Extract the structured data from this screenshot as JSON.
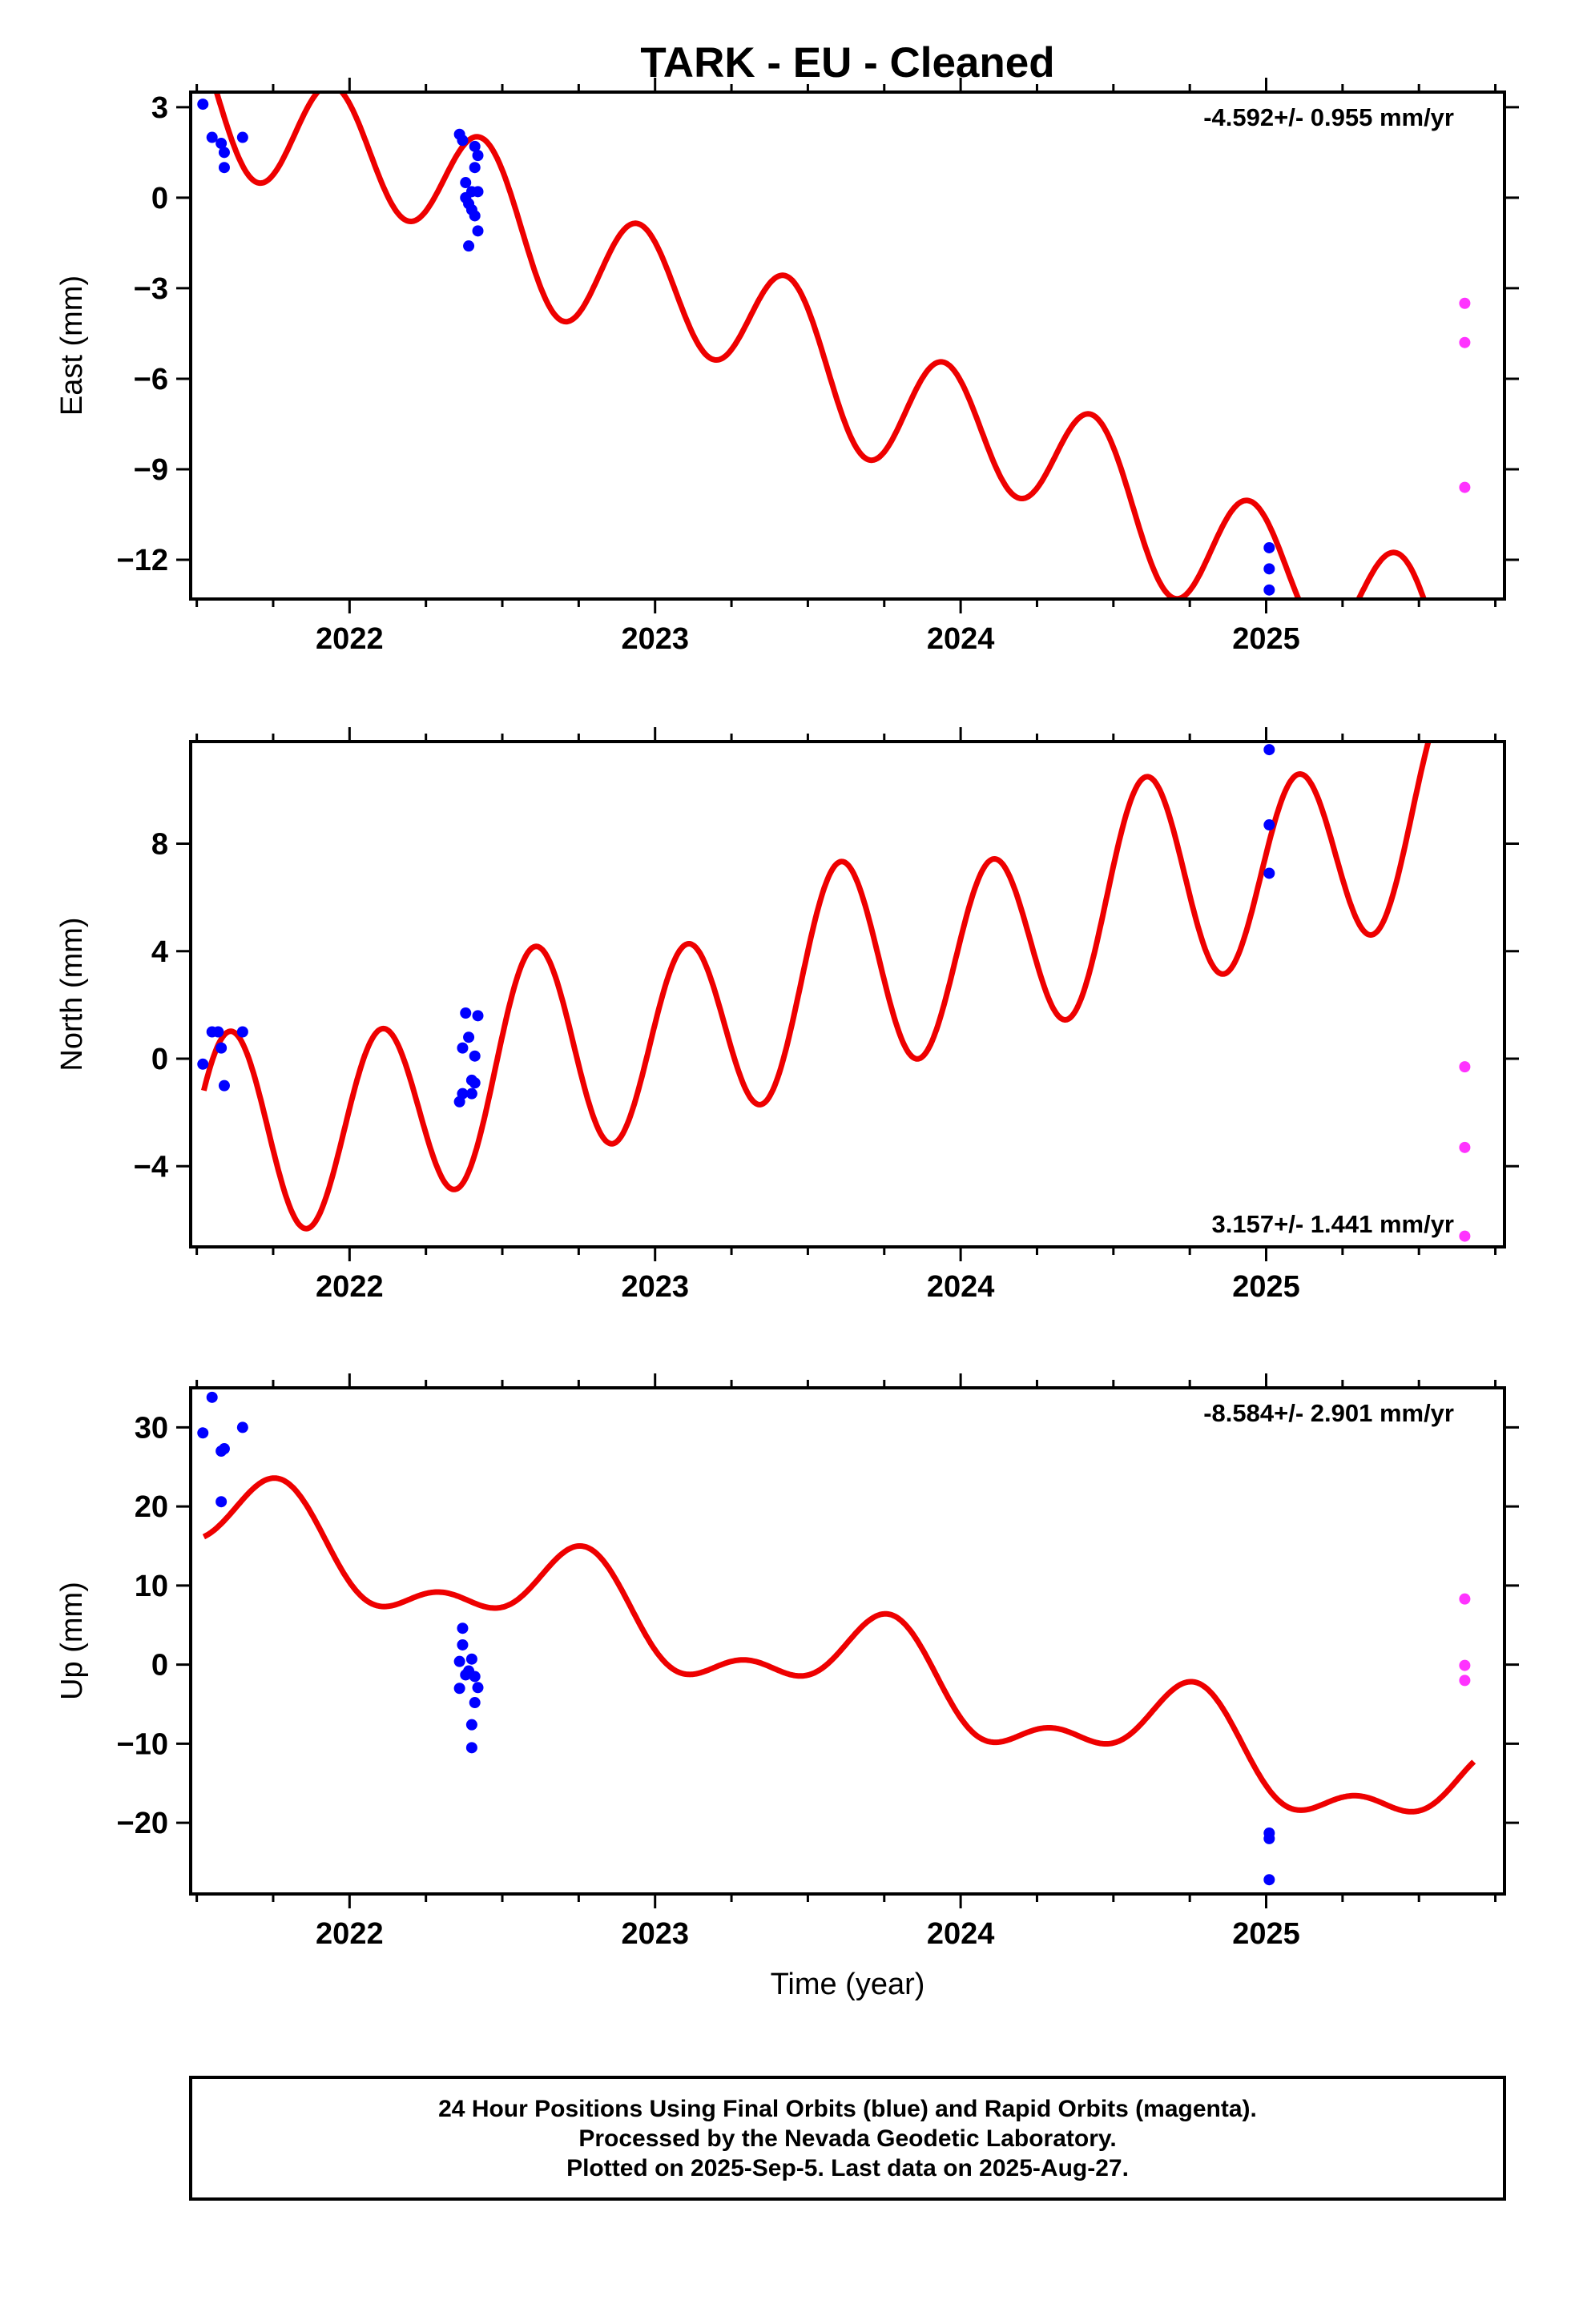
{
  "title": "TARK  - EU - Cleaned",
  "colors": {
    "final": "#0000ff",
    "rapid": "#ff33ff",
    "model": "#ee0000",
    "frame": "#000000"
  },
  "footer": {
    "line1": "24 Hour Positions Using Final Orbits (blue) and Rapid Orbits (magenta).",
    "line2": "Processed by the Nevada Geodetic Laboratory.",
    "line3": "Plotted on 2025-Sep-5. Last data on 2025-Aug-27."
  },
  "chart_data": [
    {
      "type": "scatter",
      "ylabel": "East (mm)",
      "xlabel": "",
      "xlim": [
        2021.48,
        2025.78
      ],
      "ylim": [
        -13.3,
        3.5
      ],
      "x_ticks": [
        2022,
        2023,
        2024,
        2025
      ],
      "y_ticks": [
        3,
        0,
        -3,
        -6,
        -9,
        -12
      ],
      "rate_label": "-4.592+/- 0.955 mm/yr",
      "model": {
        "x0": 2022.0,
        "offset": 1.66,
        "slope": -4.592,
        "annual_amp": 0.55,
        "annual_phase": 6.2,
        "semiannual_amp": 2.05,
        "semiannual_phase": 2.32
      },
      "final_points": [
        [
          2021.52,
          3.1
        ],
        [
          2021.55,
          2.0
        ],
        [
          2021.58,
          1.8
        ],
        [
          2021.59,
          1.5
        ],
        [
          2021.59,
          1.0
        ],
        [
          2021.65,
          2.0
        ],
        [
          2022.36,
          2.1
        ],
        [
          2022.37,
          1.9
        ],
        [
          2022.38,
          0.5
        ],
        [
          2022.38,
          0.0
        ],
        [
          2022.39,
          -0.2
        ],
        [
          2022.39,
          -1.6
        ],
        [
          2022.4,
          0.2
        ],
        [
          2022.4,
          -0.4
        ],
        [
          2022.41,
          -0.6
        ],
        [
          2022.41,
          1.0
        ],
        [
          2022.41,
          1.7
        ],
        [
          2022.42,
          1.4
        ],
        [
          2022.42,
          0.2
        ],
        [
          2022.42,
          -1.1
        ],
        [
          2025.01,
          -11.6
        ],
        [
          2025.01,
          -12.3
        ],
        [
          2025.01,
          -13.0
        ]
      ],
      "rapid_points": [
        [
          2025.65,
          -3.5
        ],
        [
          2025.65,
          -4.8
        ],
        [
          2025.65,
          -9.6
        ]
      ]
    },
    {
      "type": "scatter",
      "ylabel": "North (mm)",
      "xlabel": "",
      "xlim": [
        2021.48,
        2025.78
      ],
      "ylim": [
        -7.0,
        11.8
      ],
      "x_ticks": [
        2022,
        2023,
        2024,
        2025
      ],
      "y_ticks": [
        8,
        4,
        0,
        -4
      ],
      "rate_label": "3.157+/- 1.441 mm/yr",
      "model": {
        "x0": 2022.0,
        "offset": -2.19,
        "slope": 3.157,
        "annual_amp": 0.74,
        "annual_phase": 4.0,
        "semiannual_amp": 3.71,
        "semiannual_phase": 0.245
      },
      "final_points": [
        [
          2021.52,
          -0.2
        ],
        [
          2021.55,
          1.0
        ],
        [
          2021.57,
          1.0
        ],
        [
          2021.58,
          0.4
        ],
        [
          2021.59,
          -1.0
        ],
        [
          2021.65,
          1.0
        ],
        [
          2022.36,
          -1.6
        ],
        [
          2022.37,
          -1.3
        ],
        [
          2022.37,
          0.4
        ],
        [
          2022.38,
          1.7
        ],
        [
          2022.39,
          0.8
        ],
        [
          2022.4,
          -0.8
        ],
        [
          2022.4,
          -1.3
        ],
        [
          2022.41,
          -0.9
        ],
        [
          2022.41,
          0.1
        ],
        [
          2022.42,
          1.6
        ],
        [
          2025.01,
          11.5
        ],
        [
          2025.01,
          8.7
        ],
        [
          2025.01,
          6.9
        ]
      ],
      "rapid_points": [
        [
          2025.65,
          -0.3
        ],
        [
          2025.65,
          -3.3
        ],
        [
          2025.65,
          -6.6
        ]
      ]
    },
    {
      "type": "scatter",
      "ylabel": "Up (mm)",
      "xlabel": "Time (year)",
      "xlim": [
        2021.48,
        2025.78
      ],
      "ylim": [
        -29,
        35
      ],
      "x_ticks": [
        2022,
        2023,
        2024,
        2025
      ],
      "y_ticks": [
        30,
        20,
        10,
        0,
        -10,
        -20
      ],
      "rate_label": "-8.584+/- 2.901 mm/yr",
      "model": {
        "x0": 2022.0,
        "offset": 13.64,
        "slope": -8.584,
        "annual_amp": 5.18,
        "annual_phase": 3.25,
        "semiannual_amp": 2.89,
        "semiannual_phase": 4.3
      },
      "final_points": [
        [
          2021.52,
          29.3
        ],
        [
          2021.55,
          33.8
        ],
        [
          2021.58,
          27.0
        ],
        [
          2021.59,
          27.3
        ],
        [
          2021.65,
          30.0
        ],
        [
          2021.58,
          20.6
        ],
        [
          2022.36,
          0.4
        ],
        [
          2022.37,
          2.5
        ],
        [
          2022.37,
          4.6
        ],
        [
          2022.38,
          -1.3
        ],
        [
          2022.39,
          -0.8
        ],
        [
          2022.4,
          0.7
        ],
        [
          2022.4,
          -10.5
        ],
        [
          2022.4,
          -7.6
        ],
        [
          2022.41,
          -4.8
        ],
        [
          2022.41,
          -1.5
        ],
        [
          2022.42,
          -2.9
        ],
        [
          2022.36,
          -3.0
        ],
        [
          2025.01,
          -21.3
        ],
        [
          2025.01,
          -22.0
        ],
        [
          2025.01,
          -27.2
        ]
      ],
      "rapid_points": [
        [
          2025.65,
          8.3
        ],
        [
          2025.65,
          -0.1
        ],
        [
          2025.65,
          -2.0
        ]
      ]
    }
  ]
}
